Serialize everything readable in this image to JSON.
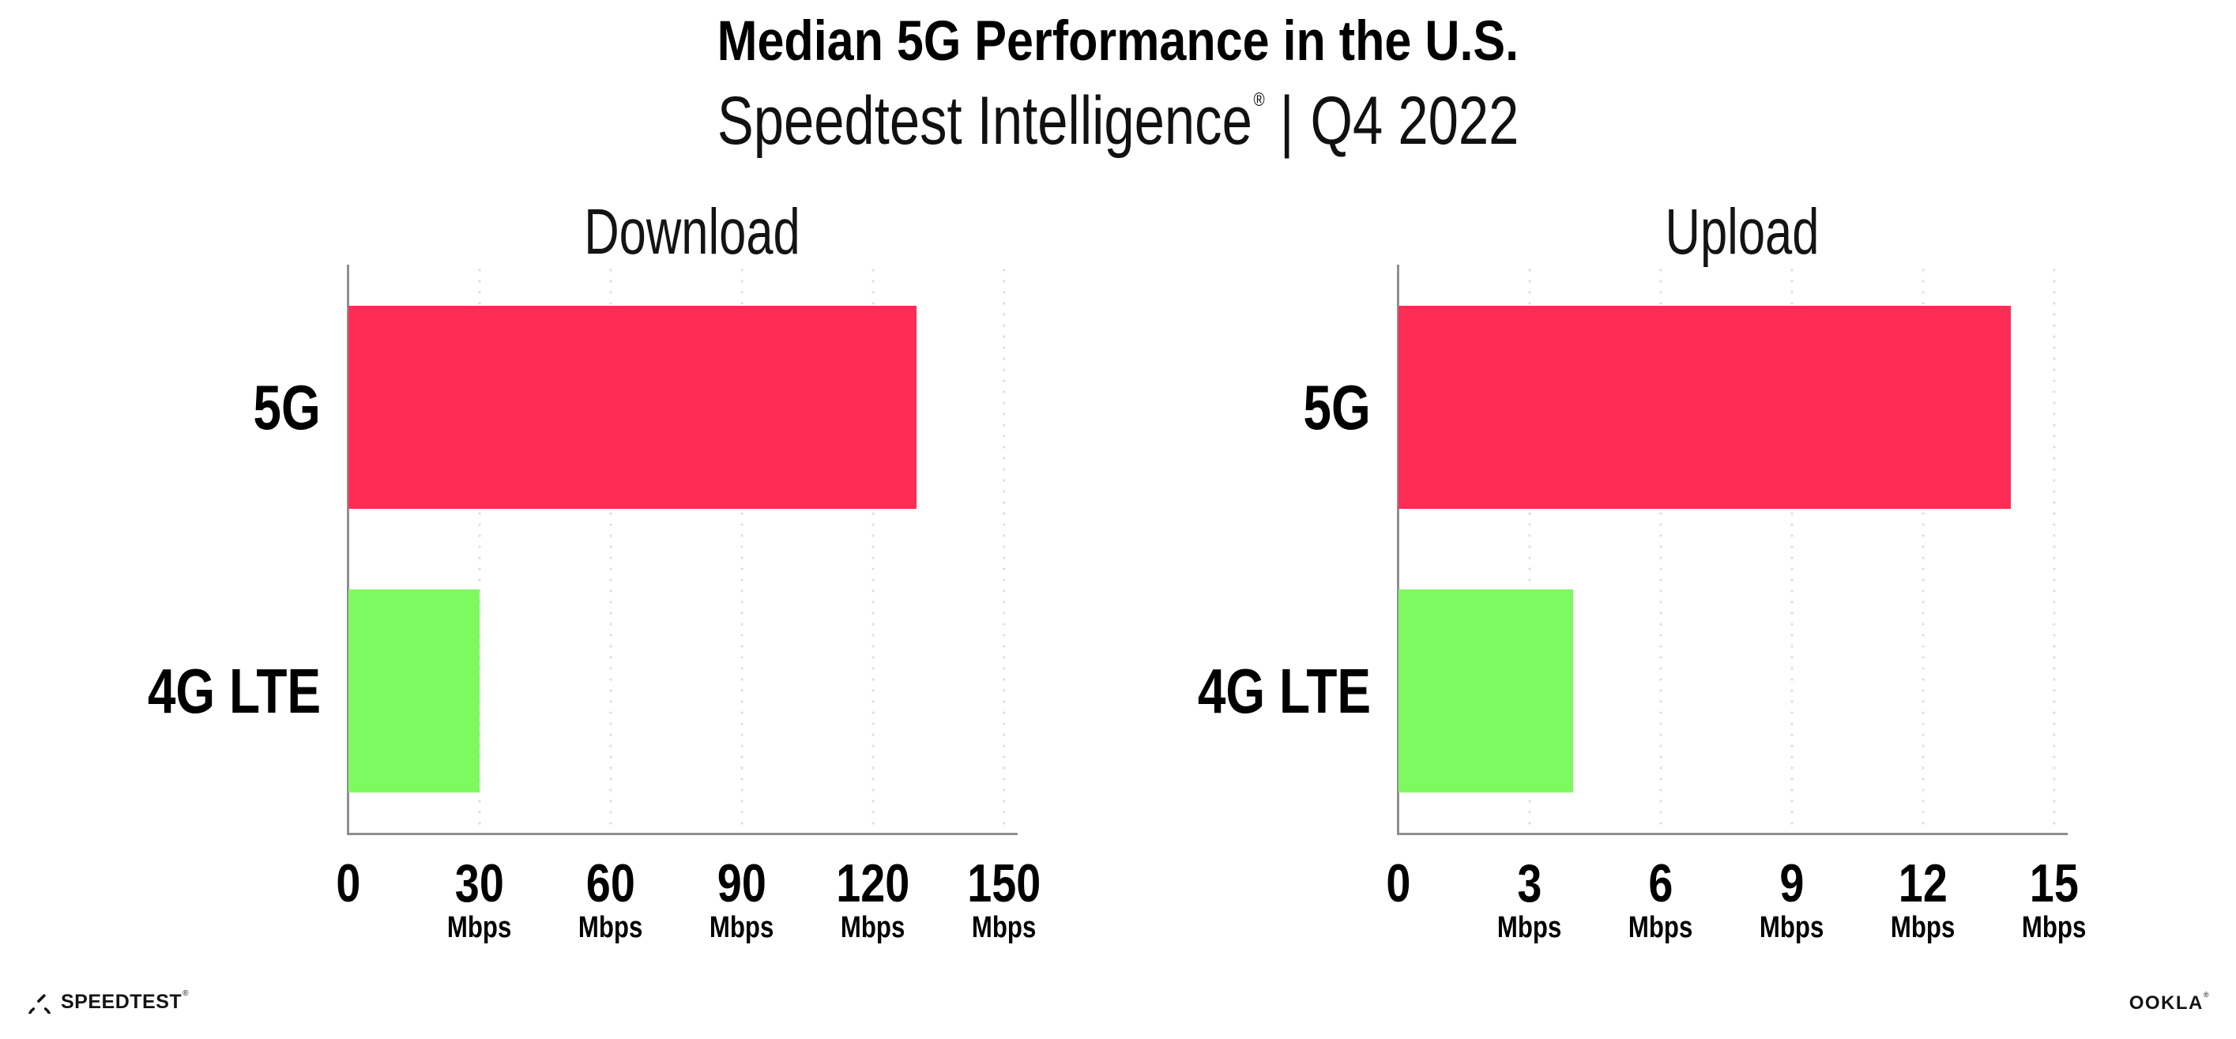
{
  "header": {
    "title": "Median 5G Performance in the U.S.",
    "subtitle": {
      "brand": "Speedtest Intelligence",
      "registered": "®",
      "separator": "|",
      "period": "Q4 2022"
    }
  },
  "chart_data": [
    {
      "type": "bar",
      "orientation": "horizontal",
      "title": "Download",
      "categories": [
        "5G",
        "4G LTE"
      ],
      "values": [
        130,
        30
      ],
      "unit": "Mbps",
      "xlim": [
        0,
        150
      ],
      "xticks": [
        {
          "value": 0,
          "label": "0",
          "unit": ""
        },
        {
          "value": 30,
          "label": "30",
          "unit": "Mbps"
        },
        {
          "value": 60,
          "label": "60",
          "unit": "Mbps"
        },
        {
          "value": 90,
          "label": "90",
          "unit": "Mbps"
        },
        {
          "value": 120,
          "label": "120",
          "unit": "Mbps"
        },
        {
          "value": 150,
          "label": "150",
          "unit": "Mbps"
        }
      ],
      "bar_colors": [
        "#ff2d55",
        "#7dfa5f"
      ],
      "grid": "dotted-vertical",
      "legend": "none"
    },
    {
      "type": "bar",
      "orientation": "horizontal",
      "title": "Upload",
      "categories": [
        "5G",
        "4G LTE"
      ],
      "values": [
        14,
        4
      ],
      "unit": "Mbps",
      "xlim": [
        0,
        15
      ],
      "xticks": [
        {
          "value": 0,
          "label": "0",
          "unit": ""
        },
        {
          "value": 3,
          "label": "3",
          "unit": "Mbps"
        },
        {
          "value": 6,
          "label": "6",
          "unit": "Mbps"
        },
        {
          "value": 9,
          "label": "9",
          "unit": "Mbps"
        },
        {
          "value": 12,
          "label": "12",
          "unit": "Mbps"
        },
        {
          "value": 15,
          "label": "15",
          "unit": "Mbps"
        }
      ],
      "bar_colors": [
        "#ff2d55",
        "#7dfa5f"
      ],
      "grid": "dotted-vertical",
      "legend": "none"
    }
  ],
  "footer": {
    "speedtest_logo": {
      "text": "SPEEDTEST",
      "registered": "®"
    },
    "ookla_logo": {
      "text": "OOKLA",
      "registered": "®"
    }
  },
  "colors": {
    "bar_5g": "#ff2d55",
    "bar_4g_lte": "#7dfa5f",
    "axis": "#8e8e93",
    "gridline": "#dcdce6",
    "text": "#000000",
    "background": "#ffffff"
  }
}
